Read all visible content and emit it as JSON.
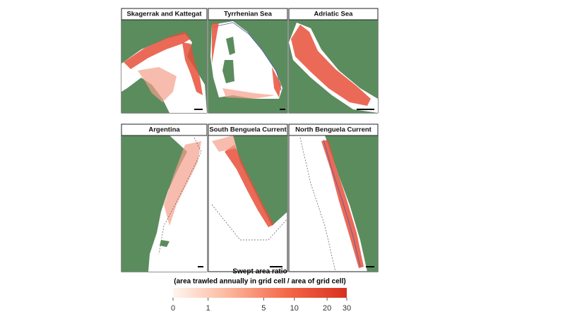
{
  "panels": [
    {
      "title": "Skagerrak and Kattegat"
    },
    {
      "title": "Tyrrhenian Sea"
    },
    {
      "title": "Adriatic Sea"
    },
    {
      "title": "Argentina"
    },
    {
      "title": "South Benguela Current"
    },
    {
      "title": "North Benguela Current"
    }
  ],
  "legend": {
    "title": "Swept area ratio",
    "subtitle": "(area trawled annually in grid cell / area of grid cell)",
    "ticks": [
      0,
      1,
      5,
      10,
      20,
      30
    ]
  }
}
